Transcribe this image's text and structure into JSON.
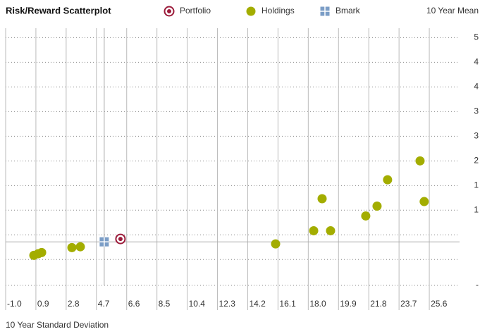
{
  "chart_data": {
    "type": "scatter",
    "title": "Risk/Reward Scatterplot",
    "x_label": "10 Year Standard Deviation",
    "y_label": "10 Year Mean",
    "xlim": [
      -1.0,
      27.5
    ],
    "ylim": [
      -1.06,
      5.2
    ],
    "xticks": [
      {
        "value": -1.0,
        "label": "-1.0"
      },
      0.9,
      2.8,
      4.7,
      6.6,
      8.5,
      10.4,
      12.3,
      14.2,
      16.1,
      {
        "value": 18.0,
        "label": "18.0"
      },
      19.9,
      21.8,
      23.7,
      25.6
    ],
    "yticks": [
      {
        "value": 4.97,
        "label": "5"
      },
      {
        "value": 4.37,
        "label": "4"
      },
      {
        "value": 3.77,
        "label": "4"
      },
      {
        "value": 3.17,
        "label": "3"
      },
      {
        "value": 2.57,
        "label": "3"
      },
      {
        "value": 1.97,
        "label": "2"
      },
      {
        "value": 1.37,
        "label": "1"
      },
      {
        "value": 0.77,
        "label": "1"
      },
      {
        "value": 0.17,
        "label": null
      },
      {
        "value": -0.43,
        "label": null
      },
      {
        "value": -1.06,
        "label": "-"
      }
    ],
    "grid": true,
    "reference_series": 2,
    "series": [
      {
        "name": "Portfolio",
        "color": "#9b1b3a",
        "marker": "ring",
        "x": [
          6.21
        ],
        "values": [
          0.07
        ]
      },
      {
        "name": "Holdings",
        "color": "#a3ad00",
        "marker": "circle",
        "x": [
          0.77,
          1.04,
          1.26,
          3.16,
          3.69,
          15.95,
          18.34,
          19.4,
          18.87,
          21.61,
          22.32,
          22.98,
          25.02,
          25.28
        ],
        "values": [
          -0.33,
          -0.29,
          -0.26,
          -0.14,
          -0.12,
          -0.05,
          0.27,
          0.27,
          1.05,
          0.63,
          0.87,
          1.51,
          1.97,
          0.98
        ]
      },
      {
        "name": "Bmark",
        "color": "#7b9dc6",
        "marker": "square",
        "x": [
          5.19
        ],
        "values": [
          0.0
        ]
      }
    ]
  }
}
